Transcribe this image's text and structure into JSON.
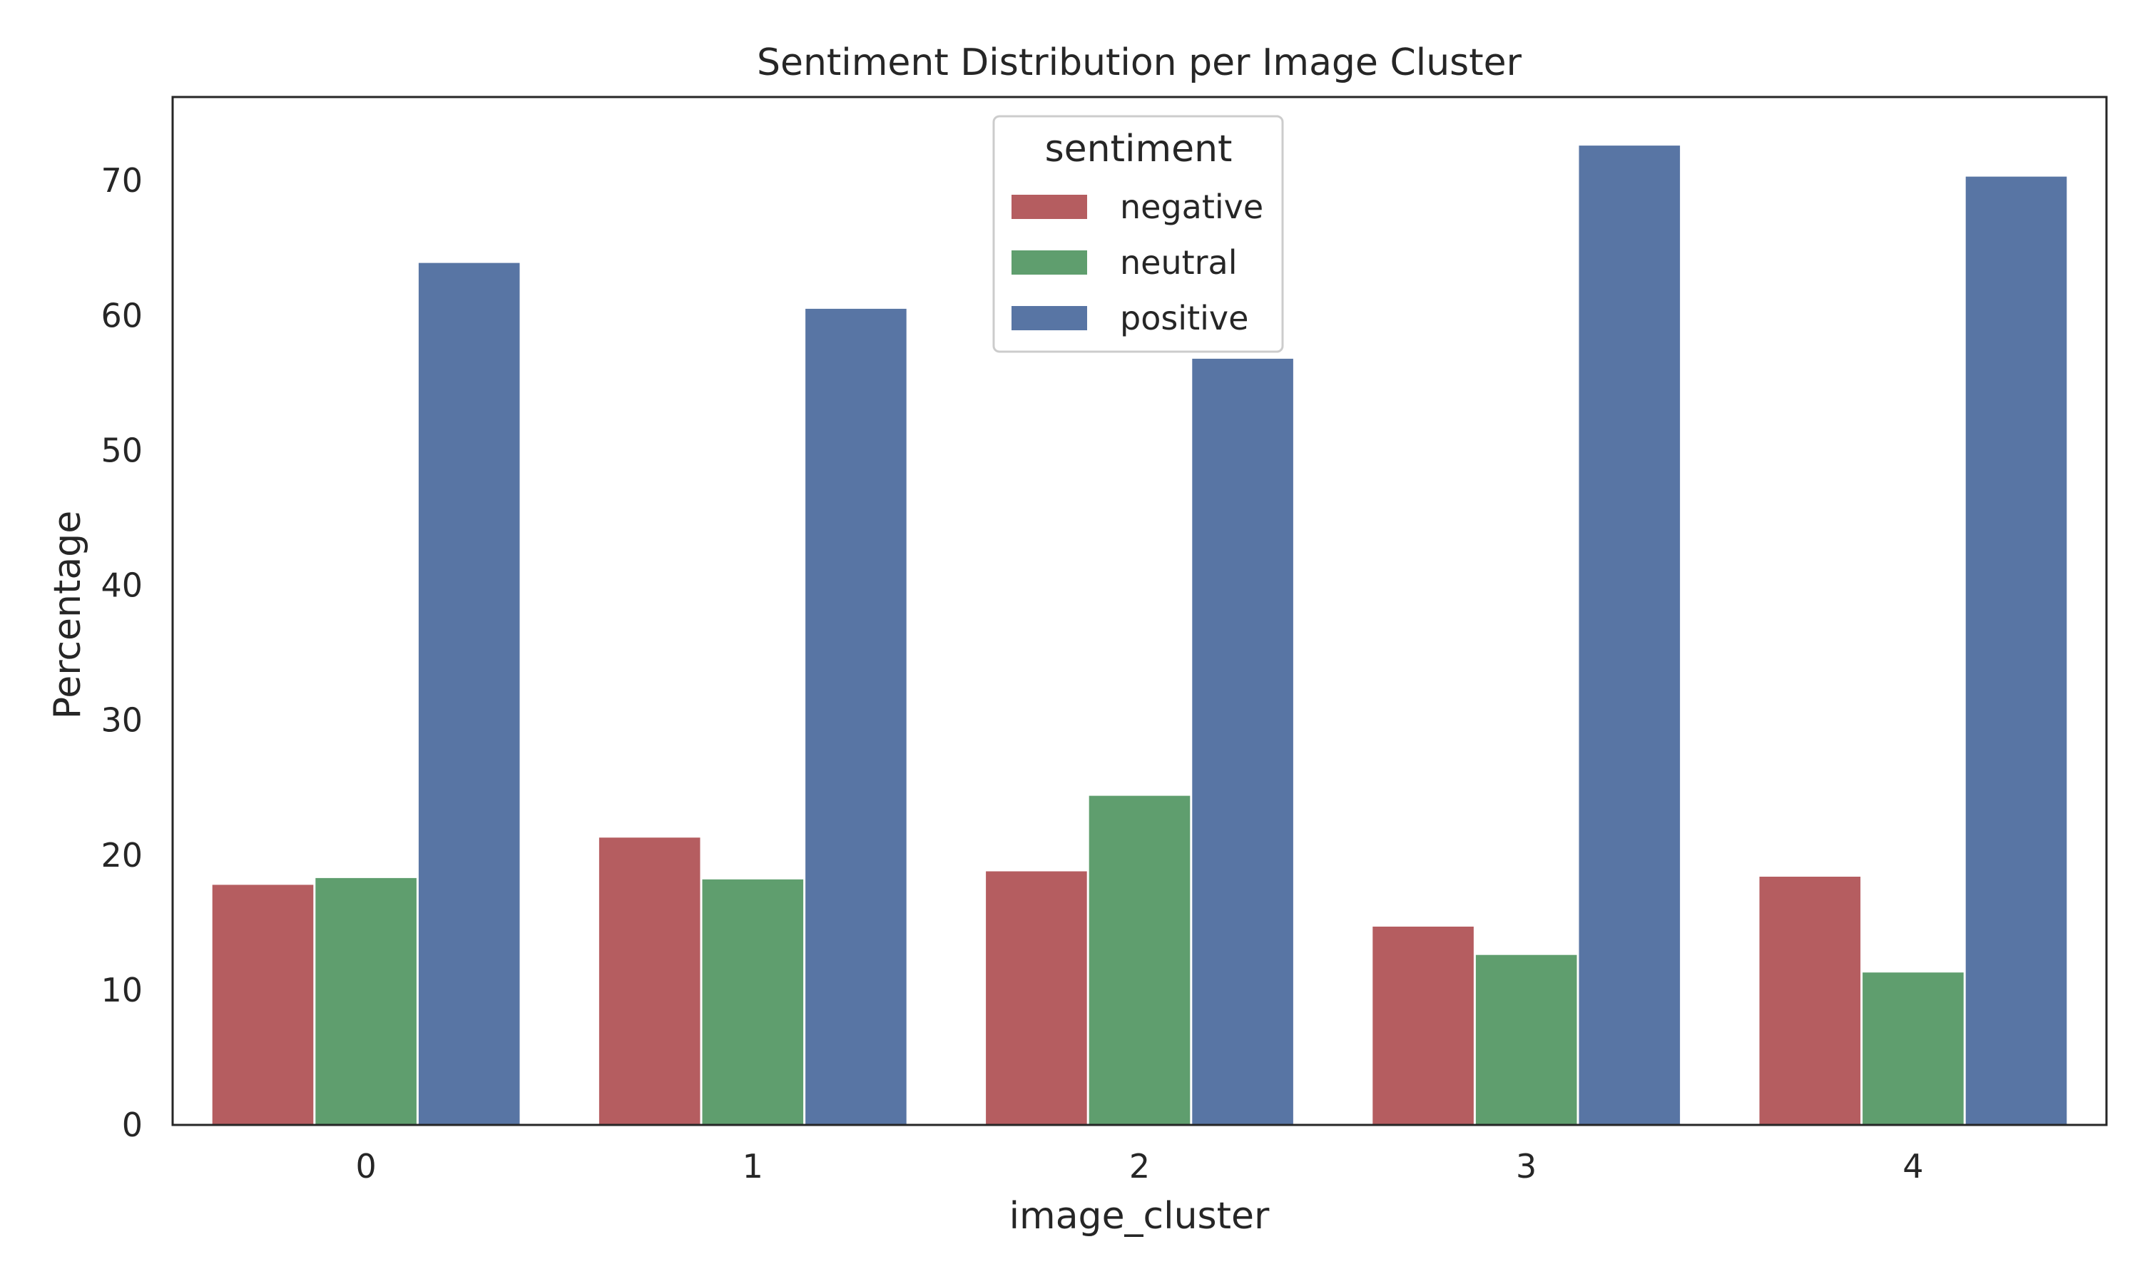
{
  "chart_data": {
    "type": "bar",
    "title": "Sentiment Distribution per Image Cluster",
    "xlabel": "image_cluster",
    "ylabel": "Percentage",
    "categories": [
      "0",
      "1",
      "2",
      "3",
      "4"
    ],
    "series": [
      {
        "name": "negative",
        "color": "#b55d60",
        "values": [
          17.8,
          21.3,
          18.8,
          14.7,
          18.4
        ]
      },
      {
        "name": "neutral",
        "color": "#5f9e6e",
        "values": [
          18.3,
          18.2,
          24.4,
          12.6,
          11.3
        ]
      },
      {
        "name": "positive",
        "color": "#5875a4",
        "values": [
          63.9,
          60.5,
          56.8,
          72.6,
          70.3
        ]
      }
    ],
    "ylim": [
      0,
      76.2
    ],
    "yticks": [
      0,
      10,
      20,
      30,
      40,
      50,
      60,
      70
    ],
    "legend": {
      "title": "sentiment",
      "position": "top-center"
    },
    "grid": false
  }
}
